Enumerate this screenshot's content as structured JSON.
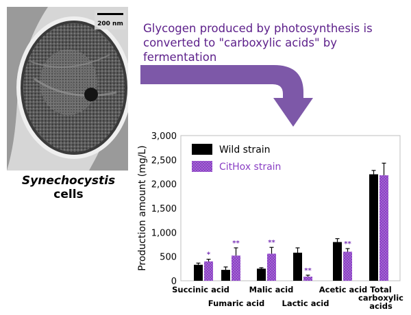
{
  "scale_bar_label": "200 nm",
  "caption": {
    "italic": "Synechocystis",
    "rest": " cells"
  },
  "headline": "Glycogen produced by photosynthesis is\nconverted to \"carboxylic acids\" by\nfermentation",
  "colors": {
    "wild": "#000000",
    "cithox": "#8a3fc4",
    "headline": "#5c1f8a",
    "arrow": "#7d58a8",
    "significance": "#7a33b8"
  },
  "chart_data": {
    "type": "bar",
    "ylabel": "Production amount (mg/L)",
    "ylim": [
      0,
      3000
    ],
    "yticks": [
      "0",
      "500",
      "1,000",
      "1,500",
      "2,000",
      "2,500",
      "3,000"
    ],
    "legend_position": "top-left",
    "categories": [
      [
        "Succinic acid"
      ],
      [
        "Fumaric acid"
      ],
      [
        "Malic acid"
      ],
      [
        "Lactic acid"
      ],
      [
        "Acetic acid"
      ],
      [
        "Total",
        "carboxylic",
        "acids"
      ]
    ],
    "series": [
      {
        "name": "Wild strain",
        "values": [
          330,
          225,
          250,
          580,
          800,
          2200
        ],
        "errors": [
          35,
          60,
          20,
          100,
          70,
          80
        ]
      },
      {
        "name": "CitHox strain",
        "values": [
          400,
          520,
          560,
          85,
          600,
          2180
        ],
        "errors": [
          45,
          160,
          130,
          30,
          65,
          250
        ]
      }
    ],
    "significance": [
      "*",
      "**",
      "**",
      "**",
      "**",
      ""
    ]
  }
}
